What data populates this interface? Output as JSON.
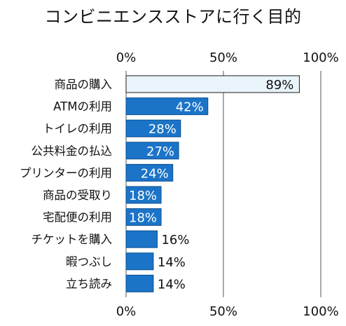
{
  "chart_data": {
    "type": "bar",
    "orientation": "horizontal",
    "title": "コンビニエンスストアに行く目的",
    "categories": [
      "商品の購入",
      "ATMの利用",
      "トイレの利用",
      "公共料金の払込",
      "プリンターの利用",
      "商品の受取り",
      "宅配便の利用",
      "チケットを購入",
      "暇つぶし",
      "立ち読み"
    ],
    "values": [
      89,
      42,
      28,
      27,
      24,
      18,
      18,
      16,
      14,
      14
    ],
    "value_labels": [
      "89%",
      "42%",
      "28%",
      "27%",
      "24%",
      "18%",
      "18%",
      "16%",
      "14%",
      "14%"
    ],
    "xlim": [
      0,
      100
    ],
    "ticks": [
      0,
      50,
      100
    ],
    "tick_labels": [
      "0%",
      "50%",
      "100%"
    ],
    "tick_positions": [
      "top",
      "bottom"
    ],
    "grid": true,
    "legend": "none",
    "colors": {
      "bar_fill": "#1b74c8",
      "bar_stroke": "#0d4f8f",
      "highlight_fill": "#e9f4fb",
      "highlight_stroke": "#1a1a1a",
      "label_on_bar": "#ffffff",
      "label_off_bar": "#111111"
    },
    "highlight_index": 0
  }
}
